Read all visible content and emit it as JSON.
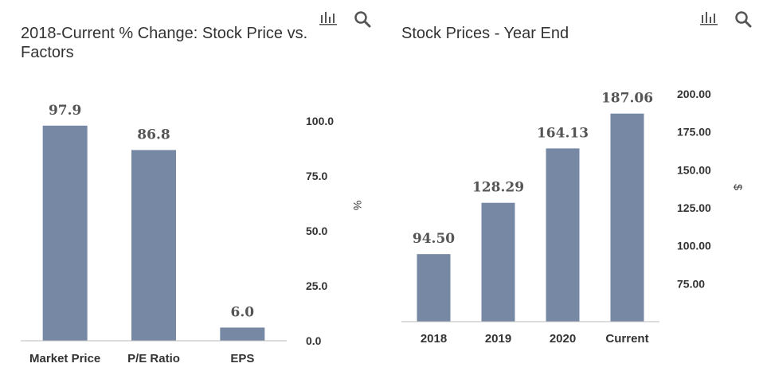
{
  "charts": [
    {
      "title_line1": "2018-Current % Change: Stock Price vs.",
      "title_line2": "Factors",
      "icons": [
        "bar-chart-icon",
        "search-icon"
      ]
    },
    {
      "title_line1": "Stock Prices - Year End",
      "icons": [
        "bar-chart-icon",
        "search-icon"
      ]
    }
  ],
  "chart_data": [
    {
      "type": "bar",
      "title": "2018-Current % Change: Stock Price vs. Factors",
      "categories": [
        "Market Price",
        "P/E Ratio",
        "EPS"
      ],
      "values": [
        97.9,
        86.8,
        6.0
      ],
      "value_labels": [
        "97.9",
        "86.8",
        "6.0"
      ],
      "ylabel": "%",
      "ylim": [
        0,
        100
      ],
      "yticks": [
        "0.0",
        "25.0",
        "50.0",
        "75.0",
        "100.0"
      ],
      "ytick_values": [
        0,
        25,
        50,
        75,
        100
      ],
      "y_axis_position": "right",
      "grid": false,
      "bar_color": "#7788a5"
    },
    {
      "type": "bar",
      "title": "Stock Prices - Year End",
      "categories": [
        "2018",
        "2019",
        "2020",
        "Current"
      ],
      "values": [
        94.5,
        128.29,
        164.13,
        187.06
      ],
      "value_labels": [
        "94.50",
        "128.29",
        "164.13",
        "187.06"
      ],
      "ylabel": "$",
      "ylim": [
        50,
        200
      ],
      "yticks": [
        "75.00",
        "100.00",
        "125.00",
        "150.00",
        "175.00",
        "200.00"
      ],
      "ytick_values": [
        75,
        100,
        125,
        150,
        175,
        200
      ],
      "y_axis_position": "right",
      "grid": false,
      "bar_color": "#7788a5"
    }
  ]
}
